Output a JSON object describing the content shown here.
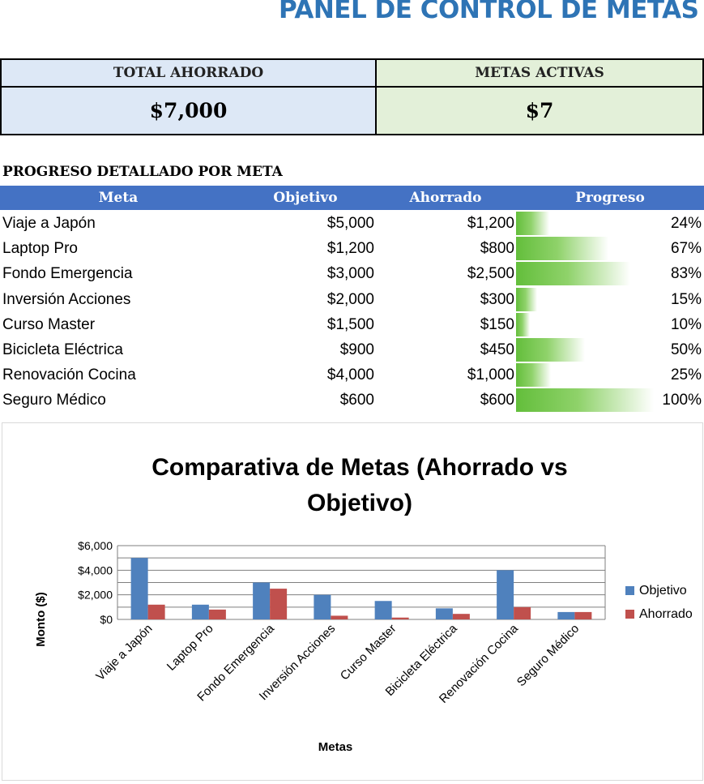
{
  "header": {
    "title": "PANEL DE CONTROL DE METAS"
  },
  "kpis": [
    {
      "label": "TOTAL AHORRADO",
      "value": "$7,000",
      "color": "#dde8f6"
    },
    {
      "label": "METAS ACTIVAS",
      "value": "$7",
      "color": "#e3f0d9"
    }
  ],
  "section_title": "PROGRESO DETALLADO POR META",
  "table": {
    "headers": [
      "Meta",
      "Objetivo",
      "Ahorrado",
      "Progreso"
    ],
    "rows": [
      {
        "meta": "Viaje a Japón",
        "objetivo": "$5,000",
        "ahorrado": "$1,200",
        "progreso": "24%",
        "fill": 0.24
      },
      {
        "meta": "Laptop Pro",
        "objetivo": "$1,200",
        "ahorrado": "$800",
        "progreso": "67%",
        "fill": 0.67
      },
      {
        "meta": "Fondo Emergencia",
        "objetivo": "$3,000",
        "ahorrado": "$2,500",
        "progreso": "83%",
        "fill": 0.83
      },
      {
        "meta": "Inversión Acciones",
        "objetivo": "$2,000",
        "ahorrado": "$300",
        "progreso": "15%",
        "fill": 0.15
      },
      {
        "meta": "Curso Master",
        "objetivo": "$1,500",
        "ahorrado": "$150",
        "progreso": "10%",
        "fill": 0.1
      },
      {
        "meta": "Bicicleta Eléctrica",
        "objetivo": "$900",
        "ahorrado": "$450",
        "progreso": "50%",
        "fill": 0.5
      },
      {
        "meta": "Renovación Cocina",
        "objetivo": "$4,000",
        "ahorrado": "$1,000",
        "progreso": "25%",
        "fill": 0.25
      },
      {
        "meta": "Seguro Médico",
        "objetivo": "$600",
        "ahorrado": "$600",
        "progreso": "100%",
        "fill": 1.0
      }
    ]
  },
  "chart_data": {
    "type": "bar",
    "title": "Comparativa de Metas (Ahorrado vs Objetivo)",
    "title_lines": [
      "Comparativa de Metas (Ahorrado vs",
      "Objetivo)"
    ],
    "xlabel": "Metas",
    "ylabel": "Monto ($)",
    "ylim": [
      0,
      6000
    ],
    "yticks": [
      0,
      2000,
      4000,
      6000
    ],
    "ytick_labels": [
      "$0",
      "$2,000",
      "$4,000",
      "$6,000"
    ],
    "grid": true,
    "legend": "right",
    "categories": [
      "Viaje a Japón",
      "Laptop Pro",
      "Fondo Emergencia",
      "Inversión Acciones",
      "Curso Master",
      "Bicicleta Eléctrica",
      "Renovación Cocina",
      "Seguro Médico"
    ],
    "series": [
      {
        "name": "Objetivo",
        "color": "#4f81bd",
        "values": [
          5000,
          1200,
          3000,
          2000,
          1500,
          900,
          4000,
          600
        ]
      },
      {
        "name": "Ahorrado",
        "color": "#c0504d",
        "values": [
          1200,
          800,
          2500,
          300,
          150,
          450,
          1000,
          600
        ]
      }
    ]
  }
}
